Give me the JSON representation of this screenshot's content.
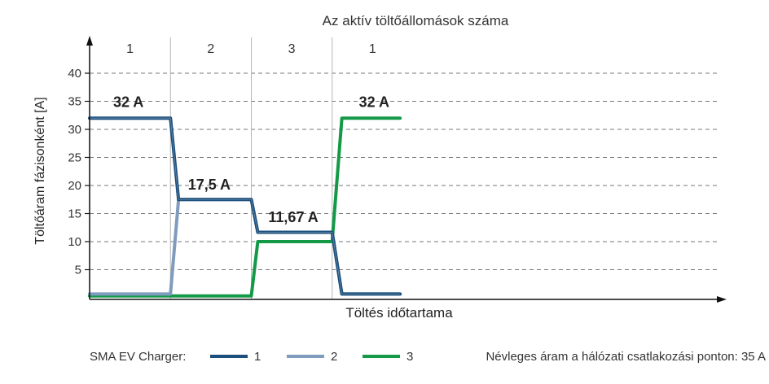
{
  "chart_data": {
    "type": "line",
    "title": "Az aktív töltőállomások száma",
    "xlabel": "Töltés időtartama",
    "ylabel": "Töltőáram fázisonként [A]",
    "ylim": [
      0,
      45
    ],
    "yticks": [
      5,
      10,
      15,
      20,
      25,
      30,
      35,
      40
    ],
    "grid": "horizontal-dashed",
    "sections": [
      {
        "label": "1",
        "x0": 0,
        "x1": 25
      },
      {
        "label": "2",
        "x0": 25,
        "x1": 50
      },
      {
        "label": "3",
        "x0": 50,
        "x1": 75
      },
      {
        "label": "1",
        "x0": 75,
        "x1": 100
      }
    ],
    "series": [
      {
        "name": "1",
        "color": "#1b4f7c",
        "x": [
          0,
          25,
          27.5,
          50,
          52,
          75,
          78,
          96
        ],
        "y": [
          32,
          32,
          17.5,
          17.5,
          11.67,
          11.67,
          0.67,
          0.67
        ]
      },
      {
        "name": "2",
        "color": "#7f9bbd",
        "x": [
          0,
          25,
          27.5,
          50,
          52,
          75,
          78,
          96
        ],
        "y": [
          0.67,
          0.67,
          17.5,
          17.5,
          11.67,
          11.67,
          0.67,
          0.67
        ]
      },
      {
        "name": "3",
        "color": "#149a47",
        "x": [
          0,
          50,
          52,
          75,
          78,
          96
        ],
        "y": [
          0.33,
          0.33,
          10,
          10,
          32,
          32
        ]
      }
    ],
    "annotations": [
      {
        "text": "32 A",
        "x": 12,
        "y": 34
      },
      {
        "text": "17,5 A",
        "x": 37,
        "y": 19.3
      },
      {
        "text": "11,67 A",
        "x": 63,
        "y": 13.5
      },
      {
        "text": "32 A",
        "x": 88,
        "y": 34
      }
    ],
    "legend": {
      "prefix": "SMA EV Charger:",
      "entries": [
        "1",
        "2",
        "3"
      ],
      "note": "Névleges áram a hálózati csatlakozási ponton: 35 A",
      "placement": "bottom"
    }
  }
}
